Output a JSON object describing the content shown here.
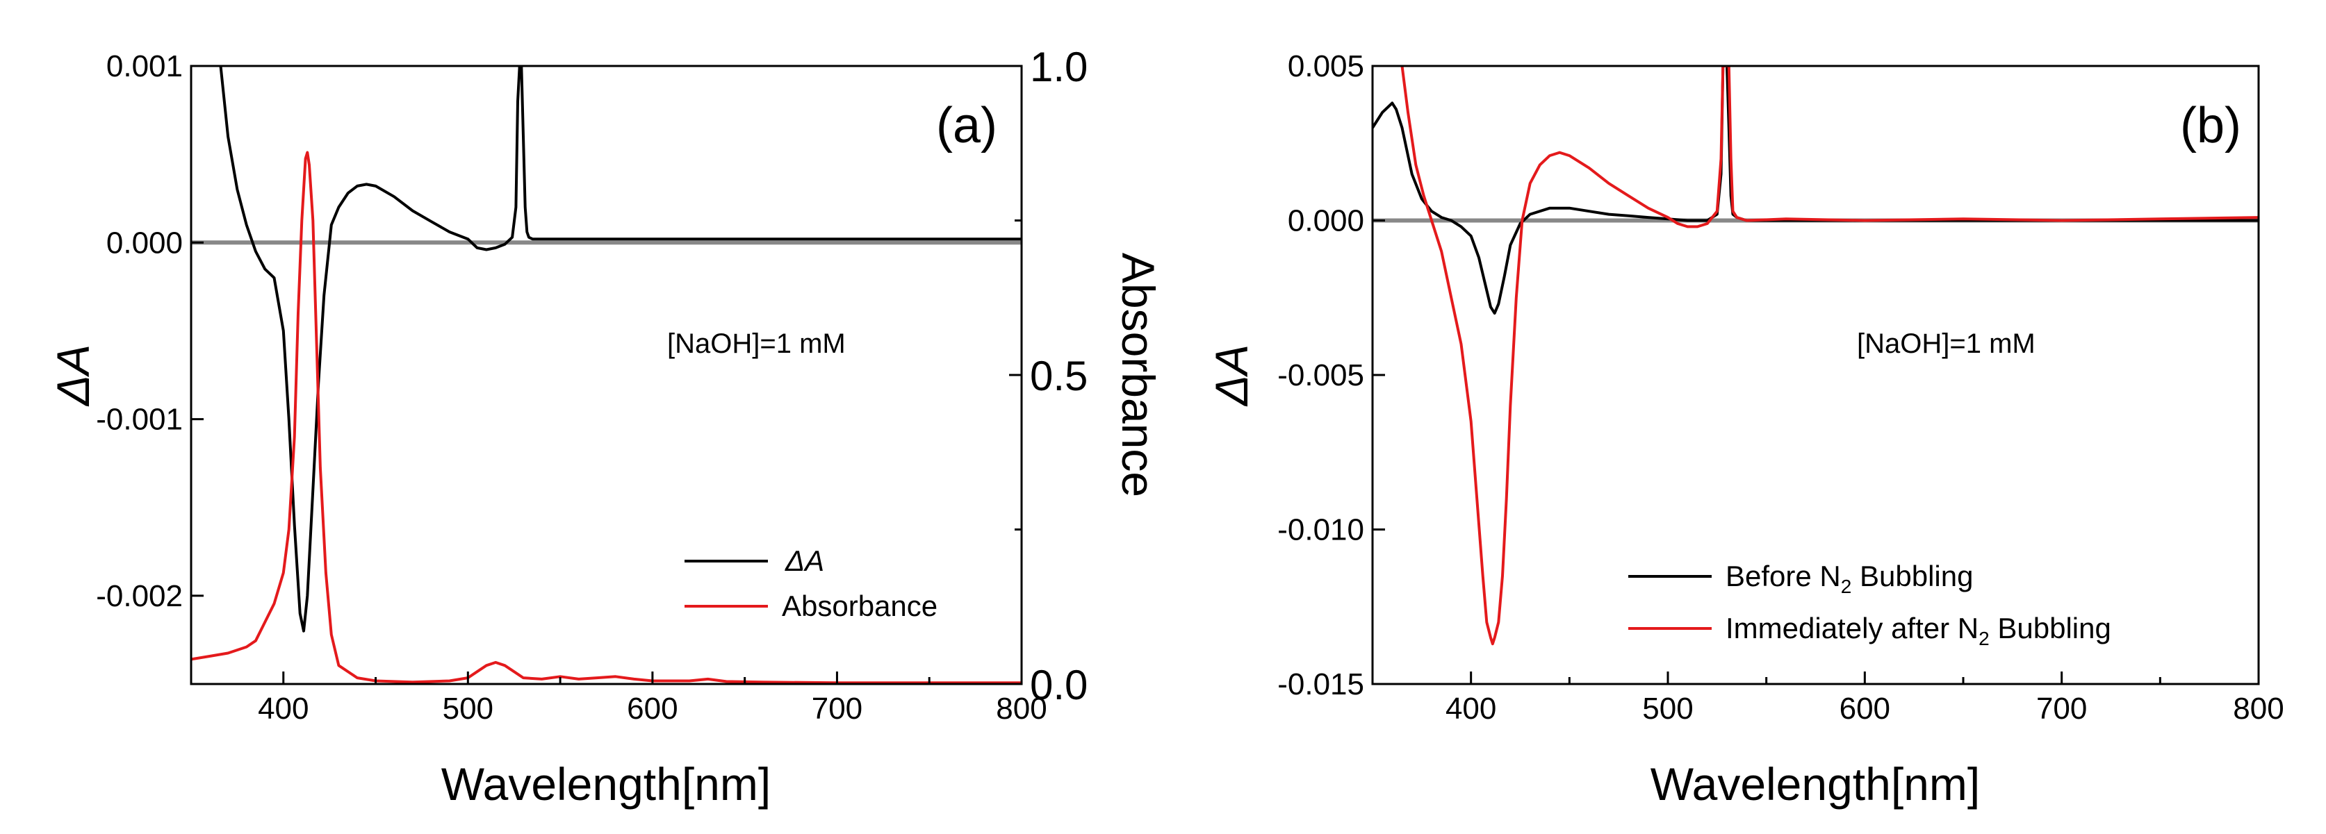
{
  "chart_data": [
    {
      "type": "line",
      "panel_label": "(a)",
      "xlabel": "Wavelength[nm]",
      "ylabel": "ΔA",
      "ylabel_right": "Absorbance",
      "xlim": [
        350,
        800
      ],
      "ylim": [
        -0.0025,
        0.001
      ],
      "ylim_right": [
        0.0,
        1.0
      ],
      "x_ticks": [
        400,
        500,
        600,
        700,
        800
      ],
      "x_tick_labels": [
        "400",
        "500",
        "600",
        "700",
        "800"
      ],
      "y_ticks": [
        0.001,
        0.0,
        -0.001,
        -0.002
      ],
      "y_tick_labels": [
        "0.001",
        "0.000",
        "-0.001",
        "-0.002"
      ],
      "y_right_ticks": [
        1.0,
        0.5,
        0.0
      ],
      "y_right_tick_labels": [
        "1.0",
        "0.5",
        "0.0"
      ],
      "zero_line": 0.0,
      "annotation": "[NaOH]=1 mM",
      "legend": [
        "ΔA",
        "Absorbance"
      ],
      "legend_position": "lower-right",
      "series": [
        {
          "name": "ΔA",
          "color": "#000000",
          "axis": "left",
          "x": [
            366,
            370,
            375,
            380,
            385,
            390,
            395,
            400,
            403,
            406,
            409,
            411,
            413,
            416,
            419,
            422,
            426,
            430,
            435,
            440,
            445,
            450,
            460,
            470,
            480,
            490,
            500,
            505,
            510,
            515,
            520,
            524,
            526,
            527,
            528,
            529,
            530,
            531,
            532,
            533,
            535,
            540,
            560,
            580,
            600,
            620,
            640,
            660,
            680,
            700,
            720,
            740,
            760,
            780,
            800
          ],
          "y": [
            0.001,
            0.0006,
            0.0003,
            0.0001,
            -5e-05,
            -0.00015,
            -0.0002,
            -0.0005,
            -0.001,
            -0.0016,
            -0.0021,
            -0.0022,
            -0.002,
            -0.0014,
            -0.0008,
            -0.0003,
            0.0001,
            0.0002,
            0.00028,
            0.00032,
            0.00033,
            0.00032,
            0.00026,
            0.00018,
            0.00012,
            6e-05,
            2e-05,
            -3e-05,
            -4e-05,
            -3e-05,
            -1e-05,
            3e-05,
            0.0002,
            0.0008,
            0.001,
            0.001,
            0.0006,
            0.0002,
            6e-05,
            3e-05,
            2e-05,
            2e-05,
            2e-05,
            2e-05,
            2e-05,
            2e-05,
            2e-05,
            2e-05,
            2e-05,
            2e-05,
            2e-05,
            2e-05,
            2e-05,
            2e-05,
            2e-05
          ]
        },
        {
          "name": "Absorbance",
          "color": "#e41a1c",
          "axis": "right",
          "x": [
            350,
            360,
            370,
            380,
            385,
            390,
            395,
            400,
            403,
            406,
            408,
            410,
            412,
            413,
            414,
            416,
            418,
            420,
            423,
            426,
            430,
            440,
            450,
            470,
            490,
            500,
            505,
            510,
            515,
            520,
            525,
            530,
            540,
            550,
            560,
            570,
            580,
            590,
            600,
            620,
            630,
            640,
            660,
            700,
            750,
            800
          ],
          "y": [
            0.04,
            0.045,
            0.05,
            0.06,
            0.07,
            0.1,
            0.13,
            0.18,
            0.25,
            0.4,
            0.6,
            0.75,
            0.85,
            0.86,
            0.84,
            0.75,
            0.55,
            0.35,
            0.18,
            0.08,
            0.03,
            0.01,
            0.005,
            0.003,
            0.005,
            0.01,
            0.02,
            0.03,
            0.035,
            0.03,
            0.02,
            0.01,
            0.008,
            0.012,
            0.008,
            0.01,
            0.012,
            0.008,
            0.005,
            0.005,
            0.008,
            0.004,
            0.003,
            0.002,
            0.002,
            0.002
          ]
        }
      ]
    },
    {
      "type": "line",
      "panel_label": "(b)",
      "xlabel": "Wavelength[nm]",
      "ylabel": "ΔA",
      "xlim": [
        350,
        800
      ],
      "ylim": [
        -0.015,
        0.005
      ],
      "x_ticks": [
        400,
        500,
        600,
        700,
        800
      ],
      "x_tick_labels": [
        "400",
        "500",
        "600",
        "700",
        "800"
      ],
      "y_ticks": [
        0.005,
        0.0,
        -0.005,
        -0.01,
        -0.015
      ],
      "y_tick_labels": [
        "0.005",
        "0.000",
        "-0.005",
        "-0.010",
        "-0.015"
      ],
      "zero_line": 0.0,
      "annotation": "[NaOH]=1 mM",
      "legend": [
        "Before N2 Bubbling",
        "Immediately after N2 Bubbling"
      ],
      "legend_position": "lower-right",
      "series": [
        {
          "name": "Before N2 Bubbling",
          "color": "#000000",
          "axis": "left",
          "x": [
            350,
            355,
            360,
            362,
            365,
            370,
            375,
            380,
            385,
            390,
            395,
            400,
            404,
            407,
            410,
            412,
            414,
            417,
            420,
            425,
            430,
            440,
            450,
            460,
            470,
            480,
            490,
            500,
            510,
            520,
            525,
            527,
            528,
            529,
            530,
            531,
            532,
            533,
            535,
            540,
            560,
            600,
            700,
            800
          ],
          "y": [
            0.003,
            0.0035,
            0.0038,
            0.0036,
            0.003,
            0.0015,
            0.0007,
            0.0003,
            0.0001,
            0.0,
            -0.0002,
            -0.0005,
            -0.0012,
            -0.002,
            -0.0028,
            -0.003,
            -0.0027,
            -0.0018,
            -0.0008,
            -0.0001,
            0.0002,
            0.0004,
            0.0004,
            0.0003,
            0.0002,
            0.00015,
            0.0001,
            5e-05,
            0.0,
            0.0,
            0.0002,
            0.0015,
            0.005,
            0.005,
            0.005,
            0.003,
            0.0008,
            0.0002,
            0.0001,
            0.0,
            0.0,
            0.0,
            0.0,
            0.0
          ]
        },
        {
          "name": "Immediately after N2 Bubbling",
          "color": "#e41a1c",
          "axis": "left",
          "x": [
            365,
            368,
            372,
            376,
            380,
            385,
            390,
            395,
            400,
            403,
            406,
            408,
            410,
            411,
            412,
            414,
            416,
            418,
            420,
            423,
            426,
            430,
            435,
            440,
            445,
            450,
            460,
            470,
            480,
            490,
            500,
            505,
            510,
            515,
            520,
            525,
            527,
            528,
            529,
            530,
            531,
            532,
            533,
            535,
            540,
            560,
            600,
            650,
            700,
            750,
            800
          ],
          "y": [
            0.005,
            0.0035,
            0.0018,
            0.0008,
            0.0,
            -0.001,
            -0.0025,
            -0.004,
            -0.0065,
            -0.009,
            -0.0115,
            -0.013,
            -0.0135,
            -0.0137,
            -0.0135,
            -0.013,
            -0.0115,
            -0.009,
            -0.006,
            -0.0025,
            0.0,
            0.0012,
            0.0018,
            0.0021,
            0.0022,
            0.0021,
            0.0017,
            0.0012,
            0.0008,
            0.0004,
            0.0001,
            -0.0001,
            -0.0002,
            -0.0002,
            -0.0001,
            0.0003,
            0.002,
            0.005,
            0.005,
            0.005,
            0.005,
            0.002,
            0.0003,
            0.0001,
            0.0,
            5e-05,
            0.0,
            5e-05,
            0.0,
            5e-05,
            0.0001
          ]
        }
      ]
    }
  ]
}
